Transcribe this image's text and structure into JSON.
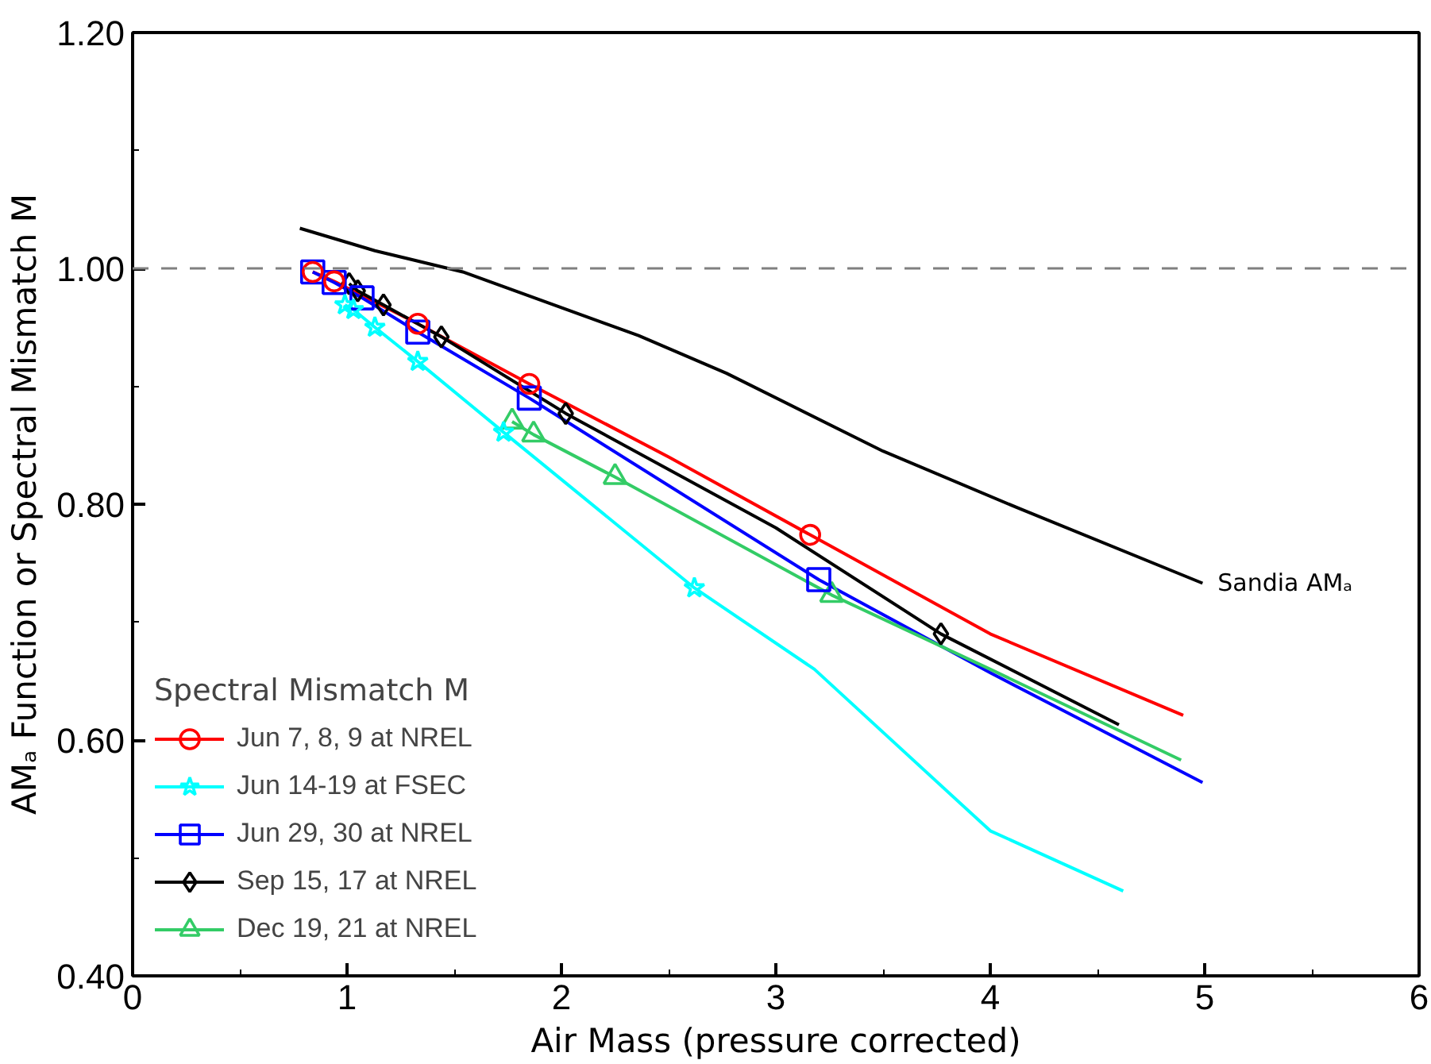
{
  "chart_data": {
    "type": "line",
    "xlabel": "Air Mass (pressure corrected)",
    "ylabel": "AMₐ Function or Spectral Mismatch M",
    "xlim": [
      0,
      6
    ],
    "ylim": [
      0.4,
      1.2
    ],
    "xticks": [
      0,
      1,
      2,
      3,
      4,
      5,
      6
    ],
    "yticks": [
      {
        "value": 0.4,
        "label": "0.40"
      },
      {
        "value": 0.6,
        "label": "0.60"
      },
      {
        "value": 0.8,
        "label": "0.80"
      },
      {
        "value": 1.0,
        "label": "1.00"
      },
      {
        "value": 1.2,
        "label": "1.20"
      }
    ],
    "grid": false,
    "legend": "bottom left",
    "legend_title": "Spectral Mismatch M",
    "ref_lines": [
      {
        "axis": "y",
        "value": 1.0,
        "label": null,
        "color": "#808080",
        "line_style": "dashed"
      }
    ],
    "series": [
      {
        "name": "Sandia AMₐ",
        "color": "#000000",
        "x": [
          0.78,
          1.13,
          1.54,
          2.36,
          2.77,
          3.5,
          4.14,
          4.99
        ],
        "values": [
          1.034,
          1.015,
          0.997,
          0.943,
          0.911,
          0.845,
          0.796,
          0.733
        ]
      },
      {
        "color": "#ff0000",
        "x": [
          0.84,
          0.94,
          1.33,
          1.85,
          2.5,
          3.16,
          4.0,
          4.9
        ],
        "values": [
          0.997,
          0.989,
          0.953,
          0.902,
          0.84,
          0.774,
          0.69,
          0.621
        ]
      },
      {
        "type": "scatter",
        "name": "Jun 7, 8, 9 at NREL",
        "marker": "circle",
        "color": "#ff0000",
        "x": [
          0.84,
          0.94,
          1.33,
          1.85,
          3.16
        ],
        "values": [
          0.997,
          0.989,
          0.953,
          0.902,
          0.774
        ]
      },
      {
        "color": "#00ffff",
        "x": [
          0.99,
          1.03,
          1.13,
          1.33,
          1.73,
          2.62,
          3.18,
          4.0,
          4.62
        ],
        "values": [
          0.969,
          0.965,
          0.95,
          0.921,
          0.861,
          0.729,
          0.66,
          0.523,
          0.472
        ]
      },
      {
        "type": "scatter",
        "name": "Jun 14-19 at FSEC",
        "marker": "star",
        "color": "#00ffff",
        "x": [
          0.99,
          1.03,
          1.13,
          1.33,
          1.73,
          2.62
        ],
        "values": [
          0.969,
          0.965,
          0.95,
          0.921,
          0.861,
          0.729
        ]
      },
      {
        "color": "#0000ff",
        "x": [
          0.84,
          0.94,
          1.07,
          1.33,
          1.85,
          3.2,
          4.0,
          4.99
        ],
        "values": [
          0.997,
          0.988,
          0.975,
          0.946,
          0.89,
          0.736,
          0.657,
          0.564
        ]
      },
      {
        "type": "scatter",
        "name": "Jun 29, 30 at NREL",
        "marker": "square",
        "color": "#0000ff",
        "x": [
          0.84,
          0.94,
          1.07,
          1.33,
          1.85,
          3.2
        ],
        "values": [
          0.997,
          0.988,
          0.975,
          0.946,
          0.89,
          0.736
        ]
      },
      {
        "color": "#000000",
        "x": [
          1.01,
          1.05,
          1.17,
          1.44,
          2.02,
          3.0,
          3.77,
          4.6
        ],
        "values": [
          0.987,
          0.981,
          0.969,
          0.942,
          0.877,
          0.78,
          0.69,
          0.613
        ]
      },
      {
        "type": "scatter",
        "name": "Sep 15, 17 at NREL",
        "marker": "diamond",
        "color": "#000000",
        "x": [
          1.01,
          1.05,
          1.17,
          1.44,
          2.02,
          3.77
        ],
        "values": [
          0.987,
          0.981,
          0.969,
          0.942,
          0.877,
          0.69
        ]
      },
      {
        "color": "#33cc66",
        "x": [
          1.77,
          1.87,
          2.25,
          3.26,
          4.0,
          4.89
        ],
        "values": [
          0.87,
          0.859,
          0.823,
          0.723,
          0.66,
          0.583
        ]
      },
      {
        "type": "scatter",
        "name": "Dec 19, 21 at NREL",
        "marker": "triangle",
        "color": "#33cc66",
        "x": [
          1.77,
          1.87,
          2.25,
          3.26
        ],
        "values": [
          0.87,
          0.859,
          0.823,
          0.723
        ]
      }
    ]
  }
}
